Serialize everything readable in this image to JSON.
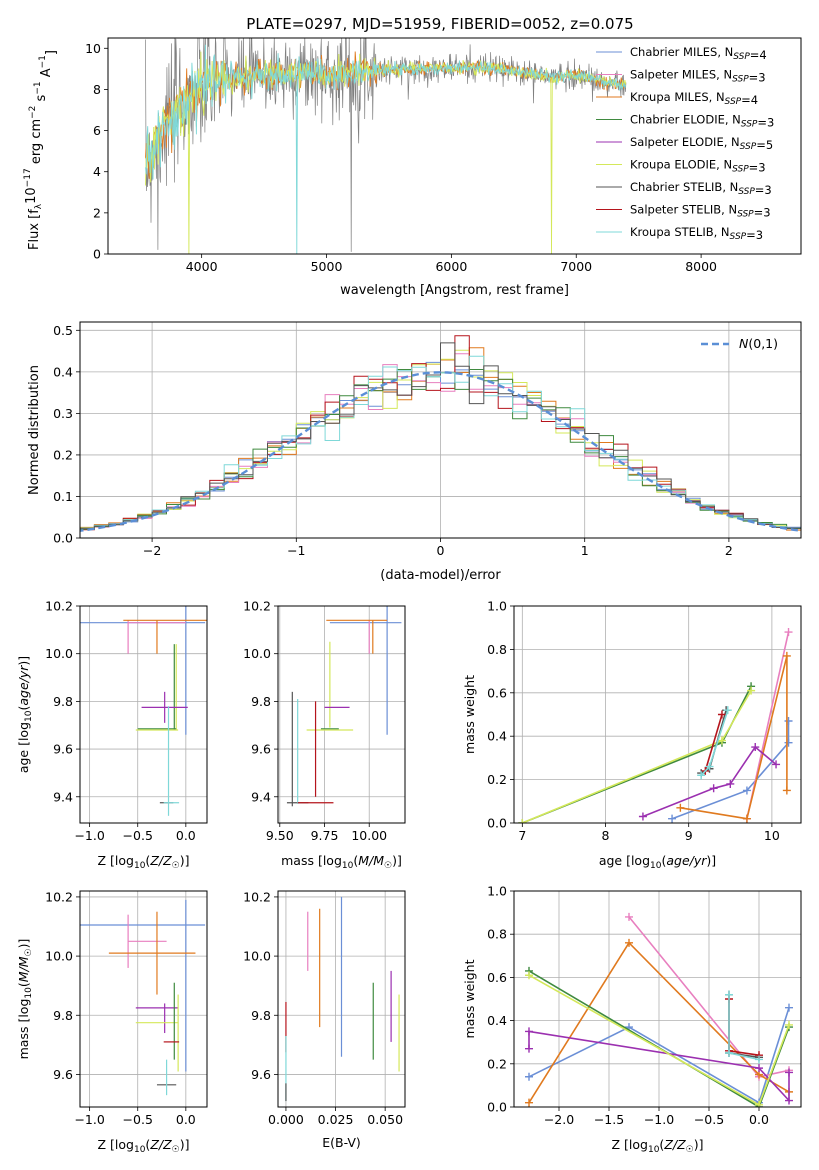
{
  "figure": {
    "title": "PLATE=0297, MJD=51959, FIBERID=0052, z=0.075"
  },
  "palette": {
    "chabrier_miles": "#6b8fd6",
    "salpeter_miles": "#e87fbf",
    "kroupa_miles": "#e07a1f",
    "chabrier_elodie": "#3f8a3f",
    "salpeter_elodie": "#9b30b0",
    "kroupa_elodie": "#d4e85a",
    "chabrier_stelib": "#555555",
    "salpeter_stelib": "#b5141c",
    "kroupa_stelib": "#7fd8d8",
    "data": "#808080"
  },
  "chart_data": [
    {
      "id": "spectrum",
      "type": "line",
      "title": "PLATE=0297, MJD=51959, FIBERID=0052, z=0.075",
      "xlabel": "wavelength [Angstrom, rest frame]",
      "ylabel": "Flux [f_λ10^-17 erg cm^-2 s^-1 A^-1]",
      "xlim": [
        3250,
        8800
      ],
      "ylim": [
        0,
        10.5
      ],
      "xticks": [
        4000,
        5000,
        6000,
        7000,
        8000
      ],
      "yticks": [
        0,
        2,
        4,
        6,
        8,
        10
      ],
      "grid": false,
      "legend_position": "top-right",
      "legend": [
        "Chabrier MILES, N_SSP=4",
        "Salpeter MILES, N_SSP=3",
        "Kroupa MILES, N_SSP=4",
        "Chabrier ELODIE, N_SSP=3",
        "Salpeter ELODIE, N_SSP=5",
        "Kroupa ELODIE, N_SSP=3",
        "Chabrier STELIB, N_SSP=3",
        "Salpeter STELIB, N_SSP=3",
        "Kroupa STELIB, N_SSP=3"
      ],
      "continuum": {
        "x": [
          3550,
          3700,
          3900,
          4100,
          4300,
          4500,
          4800,
          5000,
          5300,
          5600,
          5900,
          6200,
          6500,
          6800,
          7000,
          7200,
          7400
        ],
        "y": [
          4.2,
          6.2,
          7.6,
          8.5,
          8.6,
          8.7,
          8.8,
          8.7,
          8.9,
          9.0,
          9.0,
          9.1,
          8.9,
          8.6,
          8.7,
          8.4,
          8.2
        ]
      }
    },
    {
      "id": "residuals",
      "type": "histogram",
      "xlabel": "(data-model)/error",
      "ylabel": "Normed distribution",
      "xlim": [
        -2.5,
        2.5
      ],
      "ylim": [
        0,
        0.52
      ],
      "xticks": [
        -2,
        -1,
        0,
        1,
        2
      ],
      "yticks": [
        0.0,
        0.1,
        0.2,
        0.3,
        0.4,
        0.5
      ],
      "grid": true,
      "legend_position": "top-right",
      "legend": [
        "N(0,1)"
      ],
      "bin_width": 0.1,
      "reference_curve": "N(0,1)"
    },
    {
      "id": "z_age",
      "type": "scatter",
      "xlabel": "Z [log10(Z/Z☉)]",
      "ylabel": "age [log10(age/yr)]",
      "xlim": [
        -1.1,
        0.22
      ],
      "ylim": [
        9.29,
        10.2
      ],
      "xticks": [
        -1.0,
        -0.5,
        0.0
      ],
      "yticks": [
        9.4,
        9.6,
        9.8,
        10.0,
        10.2
      ],
      "grid": true,
      "points": [
        {
          "series": "chabrier_miles",
          "x": -0.45,
          "xerr": 0.65,
          "y": 10.13,
          "yerr": 0.0
        },
        {
          "series": "chabrier_miles",
          "x": 0.0,
          "xerr": 0.0,
          "y": 9.93,
          "yerr": 0.27
        },
        {
          "series": "salpeter_miles",
          "x": -0.3,
          "xerr": 0.3,
          "y": 10.13,
          "yerr": 0.0
        },
        {
          "series": "salpeter_miles",
          "x": -0.6,
          "xerr": 0.0,
          "y": 10.07,
          "yerr": 0.07
        },
        {
          "series": "kroupa_miles",
          "x": -0.2,
          "xerr": 0.45,
          "y": 10.14,
          "yerr": 0.0
        },
        {
          "series": "kroupa_miles",
          "x": -0.3,
          "xerr": 0.0,
          "y": 10.07,
          "yerr": 0.07
        },
        {
          "series": "kroupa_elodie",
          "x": -0.1,
          "xerr": 0.0,
          "y": 9.86,
          "yerr": 0.18
        },
        {
          "series": "chabrier_elodie",
          "x": -0.12,
          "xerr": 0.0,
          "y": 9.86,
          "yerr": 0.18
        },
        {
          "series": "salpeter_elodie",
          "x": -0.22,
          "xerr": 0.24,
          "y": 9.775,
          "yerr": 0.0
        },
        {
          "series": "salpeter_elodie",
          "x": -0.22,
          "xerr": 0.0,
          "y": 9.775,
          "yerr": 0.065
        },
        {
          "series": "chabrier_elodie",
          "x": -0.3,
          "xerr": 0.2,
          "y": 9.685,
          "yerr": 0.0
        },
        {
          "series": "kroupa_elodie",
          "x": -0.3,
          "xerr": 0.22,
          "y": 9.68,
          "yerr": 0.0
        },
        {
          "series": "chabrier_stelib",
          "x": -0.2,
          "xerr": 0.07,
          "y": 9.375,
          "yerr": 0.0
        },
        {
          "series": "kroupa_stelib",
          "x": -0.18,
          "xerr": 0.0,
          "y": 9.55,
          "yerr": 0.23
        },
        {
          "series": "kroupa_stelib",
          "x": -0.15,
          "xerr": 0.08,
          "y": 9.375,
          "yerr": 0.0
        }
      ]
    },
    {
      "id": "mass_age",
      "type": "scatter",
      "xlabel": "mass [log10(M/M☉)]",
      "xlim": [
        9.49,
        10.2
      ],
      "ylim": [
        9.29,
        10.2
      ],
      "xticks": [
        9.5,
        9.75,
        10.0
      ],
      "xtick_labels": [
        "9.50",
        "9.75",
        "10.00"
      ],
      "yticks": [
        9.4,
        9.6,
        9.8,
        10.0,
        10.2
      ],
      "grid": true,
      "points": [
        {
          "series": "chabrier_miles",
          "x": 9.98,
          "xerr": 0.2,
          "y": 10.13,
          "yerr": 0.0
        },
        {
          "series": "chabrier_miles",
          "x": 10.1,
          "xerr": 0.0,
          "y": 9.93,
          "yerr": 0.27
        },
        {
          "series": "salpeter_miles",
          "x": 10.0,
          "xerr": 0.0,
          "y": 10.07,
          "yerr": 0.07
        },
        {
          "series": "kroupa_miles",
          "x": 9.93,
          "xerr": 0.17,
          "y": 10.14,
          "yerr": 0.0
        },
        {
          "series": "kroupa_miles",
          "x": 10.02,
          "xerr": 0.0,
          "y": 10.07,
          "yerr": 0.07
        },
        {
          "series": "kroupa_elodie",
          "x": 9.78,
          "xerr": 0.0,
          "y": 9.87,
          "yerr": 0.18
        },
        {
          "series": "chabrier_elodie",
          "x": 9.78,
          "xerr": 0.05,
          "y": 9.685,
          "yerr": 0.0
        },
        {
          "series": "kroupa_elodie",
          "x": 9.78,
          "xerr": 0.13,
          "y": 9.68,
          "yerr": 0.0
        },
        {
          "series": "salpeter_elodie",
          "x": 9.82,
          "xerr": 0.07,
          "y": 9.775,
          "yerr": 0.0
        },
        {
          "series": "chabrier_stelib",
          "x": 9.57,
          "xerr": 0.0,
          "y": 9.6,
          "yerr": 0.24
        },
        {
          "series": "chabrier_stelib",
          "x": 9.6,
          "xerr": 0.06,
          "y": 9.375,
          "yerr": 0.0
        },
        {
          "series": "kroupa_stelib",
          "x": 9.6,
          "xerr": 0.0,
          "y": 9.59,
          "yerr": 0.22
        },
        {
          "series": "salpeter_stelib",
          "x": 9.7,
          "xerr": 0.0,
          "y": 9.6,
          "yerr": 0.2
        },
        {
          "series": "salpeter_stelib",
          "x": 9.7,
          "xerr": 0.1,
          "y": 9.375,
          "yerr": 0.0
        }
      ]
    },
    {
      "id": "age_weight",
      "type": "line",
      "xlabel": "age [log10(age/yr)]",
      "ylabel": "mass weight",
      "xlim": [
        6.9,
        10.35
      ],
      "ylim": [
        0,
        1.0
      ],
      "xticks": [
        7,
        8,
        9,
        10
      ],
      "yticks": [
        0.0,
        0.2,
        0.4,
        0.6,
        0.8,
        1.0
      ],
      "grid": true,
      "series": [
        {
          "name": "Chabrier MILES",
          "key": "chabrier_miles",
          "x": [
            8.8,
            9.7,
            10.2,
            10.2
          ],
          "y": [
            0.02,
            0.15,
            0.37,
            0.47
          ]
        },
        {
          "name": "Salpeter MILES",
          "key": "salpeter_miles",
          "x": [
            9.7,
            10.2
          ],
          "y": [
            0.02,
            0.88
          ]
        },
        {
          "name": "Kroupa MILES",
          "key": "kroupa_miles",
          "x": [
            8.9,
            9.7,
            10.18,
            10.18
          ],
          "y": [
            0.07,
            0.02,
            0.77,
            0.15
          ]
        },
        {
          "name": "Chabrier ELODIE",
          "key": "chabrier_elodie",
          "x": [
            7.0,
            9.4,
            9.75
          ],
          "y": [
            0.0,
            0.37,
            0.63
          ]
        },
        {
          "name": "Salpeter ELODIE",
          "key": "salpeter_elodie",
          "x": [
            8.45,
            9.3,
            9.5,
            9.8,
            10.05
          ],
          "y": [
            0.03,
            0.16,
            0.18,
            0.35,
            0.27
          ]
        },
        {
          "name": "Kroupa ELODIE",
          "key": "kroupa_elodie",
          "x": [
            7.0,
            9.4,
            9.75
          ],
          "y": [
            0.0,
            0.38,
            0.61
          ]
        },
        {
          "name": "Chabrier STELIB",
          "key": "chabrier_stelib",
          "x": [
            9.15,
            9.25,
            9.45
          ],
          "y": [
            0.23,
            0.25,
            0.52
          ]
        },
        {
          "name": "Salpeter STELIB",
          "key": "salpeter_stelib",
          "x": [
            9.2,
            9.4
          ],
          "y": [
            0.24,
            0.5
          ]
        },
        {
          "name": "Kroupa STELIB",
          "key": "kroupa_stelib",
          "x": [
            9.15,
            9.25,
            9.47
          ],
          "y": [
            0.22,
            0.26,
            0.52
          ]
        }
      ]
    },
    {
      "id": "z_mass",
      "type": "scatter",
      "xlabel": "Z [log10(Z/Z☉)]",
      "ylabel": "mass [log10(M/M☉)]",
      "xlim": [
        -1.1,
        0.22
      ],
      "ylim": [
        9.49,
        10.22
      ],
      "xticks": [
        -1.0,
        -0.5,
        0.0
      ],
      "yticks": [
        9.6,
        9.8,
        10.0,
        10.2
      ],
      "grid": true,
      "points": [
        {
          "series": "chabrier_miles",
          "x": -0.45,
          "xerr": 0.65,
          "y": 10.105,
          "yerr": 0.0
        },
        {
          "series": "chabrier_miles",
          "x": 0.0,
          "xerr": 0.0,
          "y": 9.9,
          "yerr": 0.29
        },
        {
          "series": "salpeter_miles",
          "x": -0.4,
          "xerr": 0.2,
          "y": 10.05,
          "yerr": 0.0
        },
        {
          "series": "salpeter_miles",
          "x": -0.6,
          "xerr": 0.0,
          "y": 10.05,
          "yerr": 0.09
        },
        {
          "series": "kroupa_miles",
          "x": -0.35,
          "xerr": 0.45,
          "y": 10.01,
          "yerr": 0.0
        },
        {
          "series": "kroupa_miles",
          "x": -0.3,
          "xerr": 0.0,
          "y": 10.01,
          "yerr": 0.14
        },
        {
          "series": "salpeter_elodie",
          "x": -0.3,
          "xerr": 0.22,
          "y": 9.825,
          "yerr": 0.0
        },
        {
          "series": "salpeter_elodie",
          "x": -0.22,
          "xerr": 0.0,
          "y": 9.79,
          "yerr": 0.05
        },
        {
          "series": "kroupa_elodie",
          "x": -0.3,
          "xerr": 0.22,
          "y": 9.775,
          "yerr": 0.0
        },
        {
          "series": "chabrier_elodie",
          "x": -0.12,
          "xerr": 0.0,
          "y": 9.78,
          "yerr": 0.13
        },
        {
          "series": "kroupa_elodie",
          "x": -0.08,
          "xerr": 0.0,
          "y": 9.74,
          "yerr": 0.13
        },
        {
          "series": "salpeter_stelib",
          "x": -0.15,
          "xerr": 0.08,
          "y": 9.71,
          "yerr": 0.0
        },
        {
          "series": "chabrier_stelib",
          "x": -0.2,
          "xerr": 0.1,
          "y": 9.565,
          "yerr": 0.0
        },
        {
          "series": "kroupa_stelib",
          "x": -0.2,
          "xerr": 0.0,
          "y": 9.59,
          "yerr": 0.06
        }
      ]
    },
    {
      "id": "ebv_mass",
      "type": "scatter",
      "xlabel": "E(B-V)",
      "xlim": [
        -0.004,
        0.06
      ],
      "ylim": [
        9.49,
        10.22
      ],
      "xticks": [
        0.0,
        0.025,
        0.05
      ],
      "xtick_labels": [
        "0.000",
        "0.025",
        "0.050"
      ],
      "yticks": [
        9.6,
        9.8,
        10.0,
        10.2
      ],
      "grid": true,
      "points": [
        {
          "series": "salpeter_miles",
          "x": 0.011,
          "y": 10.05,
          "yerr": 0.1
        },
        {
          "series": "kroupa_miles",
          "x": 0.017,
          "y": 9.96,
          "yerr": 0.2
        },
        {
          "series": "chabrier_miles",
          "x": 0.028,
          "y": 9.93,
          "yerr": 0.27
        },
        {
          "series": "chabrier_elodie",
          "x": 0.044,
          "y": 9.78,
          "yerr": 0.13
        },
        {
          "series": "salpeter_elodie",
          "x": 0.053,
          "y": 9.83,
          "yerr": 0.12
        },
        {
          "series": "kroupa_elodie",
          "x": 0.057,
          "y": 9.74,
          "yerr": 0.13
        },
        {
          "series": "salpeter_stelib",
          "x": 0.0,
          "y": 9.76,
          "yerr": 0.085
        },
        {
          "series": "kroupa_stelib",
          "x": 0.0,
          "y": 9.62,
          "yerr": 0.11
        },
        {
          "series": "chabrier_stelib",
          "x": 0.0,
          "y": 9.54,
          "yerr": 0.03
        }
      ]
    },
    {
      "id": "z_weight",
      "type": "line",
      "xlabel": "Z [log10(Z/Z☉)]",
      "ylabel": "mass weight",
      "xlim": [
        -2.45,
        0.42
      ],
      "ylim": [
        0,
        1.0
      ],
      "xticks": [
        -2.0,
        -1.5,
        -1.0,
        -0.5,
        0.0
      ],
      "yticks": [
        0.0,
        0.2,
        0.4,
        0.6,
        0.8,
        1.0
      ],
      "grid": true,
      "series": [
        {
          "name": "Chabrier MILES",
          "key": "chabrier_miles",
          "x": [
            -2.3,
            -1.3,
            0.0,
            0.3
          ],
          "y": [
            0.14,
            0.37,
            0.02,
            0.46
          ]
        },
        {
          "name": "Salpeter MILES",
          "key": "salpeter_miles",
          "x": [
            -1.3,
            0.0,
            0.3
          ],
          "y": [
            0.88,
            0.14,
            0.17
          ]
        },
        {
          "name": "Kroupa MILES",
          "key": "kroupa_miles",
          "x": [
            -2.3,
            -1.3,
            0.0,
            0.3
          ],
          "y": [
            0.02,
            0.76,
            0.15,
            0.07
          ]
        },
        {
          "name": "Chabrier ELODIE",
          "key": "chabrier_elodie",
          "x": [
            -2.3,
            0.0,
            0.3
          ],
          "y": [
            0.63,
            0.0,
            0.37
          ]
        },
        {
          "name": "Salpeter ELODIE",
          "key": "salpeter_elodie",
          "x": [
            -2.3,
            -2.3,
            0.0,
            0.3,
            0.3
          ],
          "y": [
            0.27,
            0.35,
            0.18,
            0.03,
            0.16
          ]
        },
        {
          "name": "Kroupa ELODIE",
          "key": "kroupa_elodie",
          "x": [
            -2.3,
            0.0,
            0.3
          ],
          "y": [
            0.61,
            0.01,
            0.38
          ]
        },
        {
          "name": "Chabrier STELIB",
          "key": "chabrier_stelib",
          "x": [
            -0.3,
            -0.3,
            0.0
          ],
          "y": [
            0.52,
            0.25,
            0.23
          ]
        },
        {
          "name": "Salpeter STELIB",
          "key": "salpeter_stelib",
          "x": [
            -0.3,
            -0.3,
            0.0
          ],
          "y": [
            0.5,
            0.26,
            0.24
          ]
        },
        {
          "name": "Kroupa STELIB",
          "key": "kroupa_stelib",
          "x": [
            -0.3,
            -0.3,
            0.0
          ],
          "y": [
            0.52,
            0.25,
            0.22
          ]
        }
      ]
    }
  ]
}
